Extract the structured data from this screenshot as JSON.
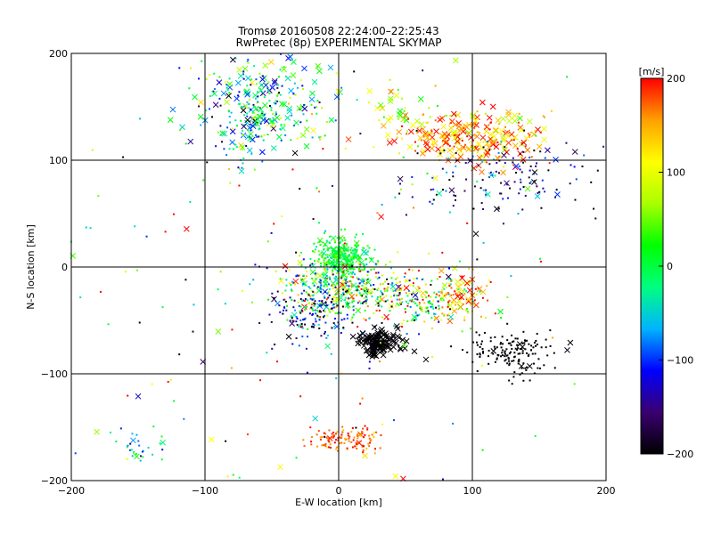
{
  "chart_data": {
    "type": "scatter",
    "title": "Tromsø 20160508 22:24:00–22:25:43",
    "subtitle": "RwPretec (8p) EXPERIMENTAL SKYMAP",
    "xlabel": "E-W location [km]",
    "ylabel": "N-S location [km]",
    "xlim": [
      -200,
      200
    ],
    "ylim": [
      -200,
      200
    ],
    "x_ticks": [
      -200,
      -100,
      0,
      100,
      200
    ],
    "y_ticks": [
      -200,
      -100,
      0,
      100,
      200
    ],
    "x_tick_labels": [
      "−200",
      "−100",
      "0",
      "100",
      "200"
    ],
    "y_tick_labels": [
      "−200",
      "−100",
      "0",
      "100",
      "200"
    ],
    "grid_lines": [
      -100,
      0,
      100
    ],
    "colorbar": {
      "label": "[m/s]",
      "range": [
        -200,
        200
      ],
      "ticks": [
        200,
        100,
        0,
        -100,
        -200
      ],
      "tick_labels": [
        "200",
        "100",
        "0",
        "−100",
        "−200"
      ],
      "colormap": [
        "#000000",
        "#3a0070",
        "#0000ff",
        "#00b4ff",
        "#00ff80",
        "#00ff00",
        "#aaff00",
        "#ffff00",
        "#ffa000",
        "#ff0000"
      ]
    },
    "markers": {
      "dot": "+",
      "cross": "x"
    },
    "clusters": [
      {
        "x": -60,
        "y": 150,
        "sx": 22,
        "sy": 24,
        "n": 320,
        "v": -30,
        "vs": 80,
        "x_frac": 0.35
      },
      {
        "x": 45,
        "y": 145,
        "sx": 12,
        "sy": 15,
        "n": 40,
        "v": 60,
        "vs": 40,
        "x_frac": 0.5
      },
      {
        "x": 100,
        "y": 122,
        "sx": 28,
        "sy": 12,
        "n": 260,
        "v": 150,
        "vs": 50,
        "x_frac": 0.6
      },
      {
        "x": 115,
        "y": 85,
        "sx": 35,
        "sy": 18,
        "n": 140,
        "v": -150,
        "vs": 60,
        "x_frac": 0.1
      },
      {
        "x": 3,
        "y": 10,
        "sx": 10,
        "sy": 9,
        "n": 320,
        "v": 10,
        "vs": 25,
        "x_frac": 0.1
      },
      {
        "x": 0,
        "y": -20,
        "sx": 22,
        "sy": 14,
        "n": 320,
        "v": 10,
        "vs": 110,
        "x_frac": 0.1
      },
      {
        "x": -20,
        "y": -40,
        "sx": 14,
        "sy": 14,
        "n": 150,
        "v": -120,
        "vs": 70,
        "x_frac": 0.05
      },
      {
        "x": 55,
        "y": -30,
        "sx": 25,
        "sy": 12,
        "n": 260,
        "v": 40,
        "vs": 130,
        "x_frac": 0.08
      },
      {
        "x": 90,
        "y": -25,
        "sx": 10,
        "sy": 8,
        "n": 60,
        "v": 160,
        "vs": 40,
        "x_frac": 0.5
      },
      {
        "x": 30,
        "y": -70,
        "sx": 8,
        "sy": 6,
        "n": 130,
        "v": -200,
        "vs": 5,
        "x_frac": 0.9
      },
      {
        "x": 130,
        "y": -80,
        "sx": 18,
        "sy": 11,
        "n": 150,
        "v": -200,
        "vs": 5,
        "x_frac": 0.05
      },
      {
        "x": 5,
        "y": -162,
        "sx": 14,
        "sy": 7,
        "n": 120,
        "v": 175,
        "vs": 30,
        "x_frac": 0.05
      },
      {
        "x": -150,
        "y": -170,
        "sx": 12,
        "sy": 8,
        "n": 30,
        "v": -50,
        "vs": 60,
        "x_frac": 0.05
      },
      {
        "x": 0,
        "y": -30,
        "sx": 110,
        "sy": 100,
        "n": 220,
        "v": 0,
        "vs": 160,
        "x_frac": 0.15
      }
    ]
  }
}
